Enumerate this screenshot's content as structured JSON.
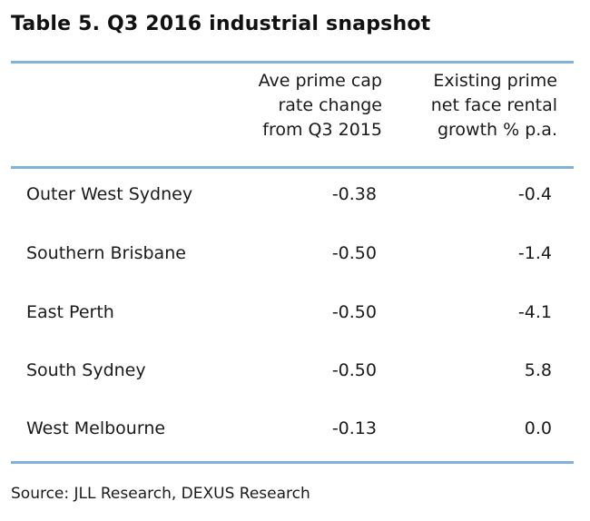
{
  "title": "Table 5. Q3 2016 industrial snapshot",
  "table": {
    "headers": {
      "col1": [
        "Ave prime cap",
        "rate change",
        "from Q3 2015"
      ],
      "col2": [
        "Existing prime",
        "net face rental",
        "growth % p.a."
      ]
    },
    "rows": [
      {
        "name": "Outer West Sydney",
        "cap_rate_change": "-0.38",
        "rental_growth": "-0.4"
      },
      {
        "name": "Southern Brisbane",
        "cap_rate_change": "-0.50",
        "rental_growth": "-1.4"
      },
      {
        "name": "East Perth",
        "cap_rate_change": "-0.50",
        "rental_growth": "-4.1"
      },
      {
        "name": "South Sydney",
        "cap_rate_change": "-0.50",
        "rental_growth": "5.8"
      },
      {
        "name": "West Melbourne",
        "cap_rate_change": "-0.13",
        "rental_growth": "0.0"
      }
    ]
  },
  "source": "Source: JLL Research, DEXUS Research",
  "colors": {
    "rule": "#7fb2dd",
    "text": "#1a1a1a"
  }
}
